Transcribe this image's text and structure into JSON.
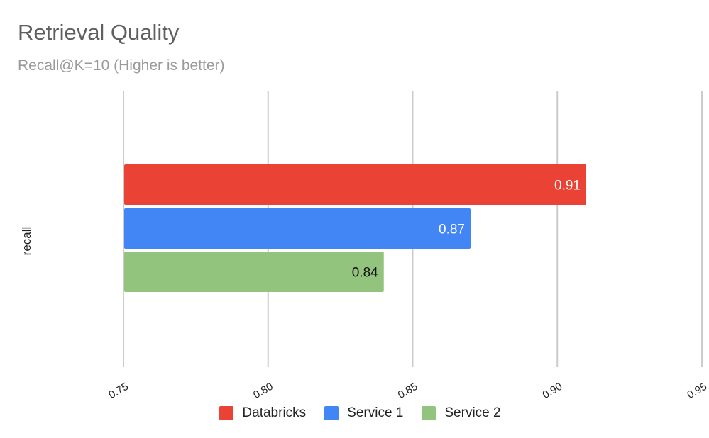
{
  "chart_data": {
    "type": "bar",
    "orientation": "horizontal",
    "title": "Retrieval Quality",
    "subtitle": "Recall@K=10 (Higher is better)",
    "ylabel": "recall",
    "xlabel": "",
    "categories": [
      "recall"
    ],
    "series": [
      {
        "name": "Databricks",
        "values": [
          0.91
        ],
        "color": "#ea4335",
        "label": "0.91",
        "label_color": "#ffffff"
      },
      {
        "name": "Service 1",
        "values": [
          0.87
        ],
        "color": "#4285f4",
        "label": "0.87",
        "label_color": "#ffffff"
      },
      {
        "name": "Service 2",
        "values": [
          0.84
        ],
        "color": "#93c47d",
        "label": "0.84",
        "label_color": "#111111"
      }
    ],
    "xlim": [
      0.75,
      0.95
    ],
    "xticks": [
      "0.75",
      "0.80",
      "0.85",
      "0.90",
      "0.95"
    ],
    "grid": true,
    "legend_position": "bottom"
  }
}
